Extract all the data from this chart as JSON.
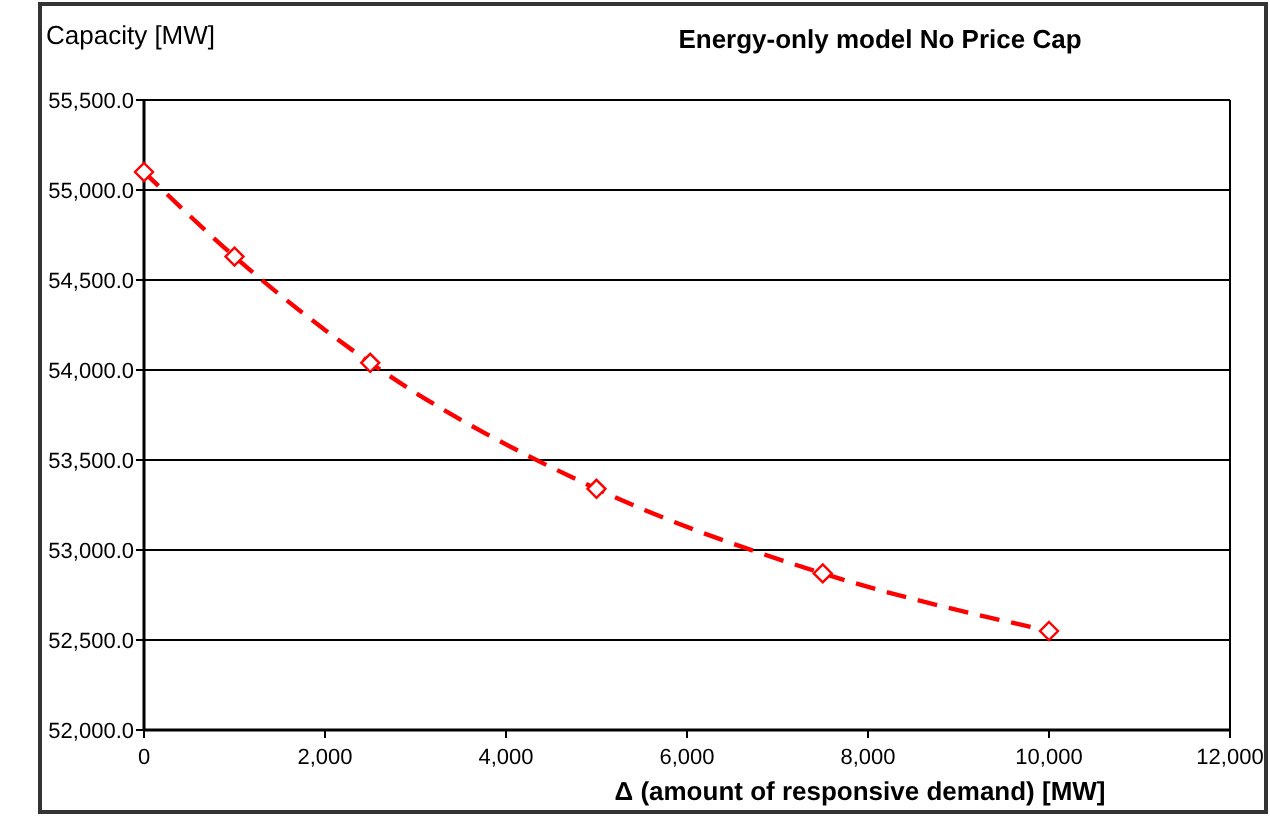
{
  "chart_data": {
    "type": "line",
    "title": "Energy-only model No Price Cap",
    "ylabel": "Capacity [MW]",
    "xlabel": "Δ (amount of responsive demand) [MW]",
    "x": [
      0,
      1000,
      2500,
      5000,
      7500,
      10000
    ],
    "series": [
      {
        "color": "#ff0000",
        "values": [
          55100,
          54630,
          54040,
          53340,
          52870,
          52550
        ]
      }
    ],
    "marker": "diamond",
    "line_style": "dashed",
    "grid": "y",
    "xlim": [
      0,
      12000
    ],
    "xticks": [
      0,
      {
        "value": 2000,
        "label": "2,000"
      },
      {
        "value": 4000,
        "label": "4,000"
      },
      {
        "value": 6000,
        "label": "6,000"
      },
      {
        "value": 8000,
        "label": "8,000"
      },
      {
        "value": 10000,
        "label": "10,000"
      },
      {
        "value": 12000,
        "label": "12,000"
      }
    ],
    "ylim": [
      52000,
      55500
    ],
    "yticks": [
      {
        "value": 52000,
        "label": "52,000.0"
      },
      {
        "value": 52500,
        "label": "52,500.0"
      },
      {
        "value": 53000,
        "label": "53,000.0"
      },
      {
        "value": 53500,
        "label": "53,500.0"
      },
      {
        "value": 54000,
        "label": "54,000.0"
      },
      {
        "value": 54500,
        "label": "54,500.0"
      },
      {
        "value": 55000,
        "label": "55,000.0"
      },
      {
        "value": 55500,
        "label": "55,500.0"
      }
    ]
  }
}
